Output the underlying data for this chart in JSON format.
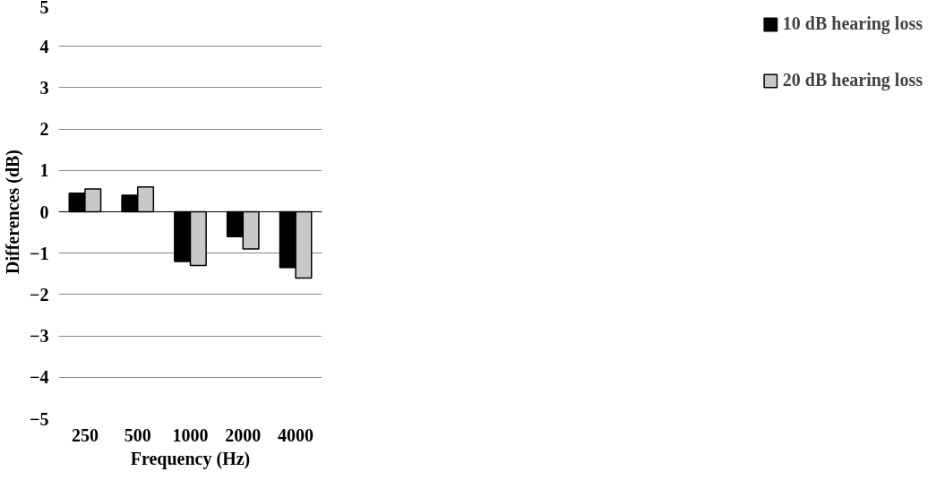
{
  "chart_data": {
    "type": "bar",
    "xlabel": "Frequency (Hz)",
    "ylabel": "Differences (dB)",
    "categories": [
      "250",
      "500",
      "1000",
      "2000",
      "4000"
    ],
    "series": [
      {
        "name": "10 dB hearing loss",
        "color": "#000000",
        "values": [
          0.45,
          0.4,
          -1.2,
          -0.6,
          -1.35
        ]
      },
      {
        "name": "20 dB hearing loss",
        "color": "#c8c8c8",
        "values": [
          0.55,
          0.6,
          -1.3,
          -0.9,
          -1.6
        ]
      }
    ],
    "ylim": [
      -5,
      5
    ],
    "yticks": [
      -5,
      -4,
      -3,
      -2,
      -1,
      0,
      1,
      2,
      3,
      4,
      5
    ],
    "grid": "y",
    "legend": "right"
  }
}
